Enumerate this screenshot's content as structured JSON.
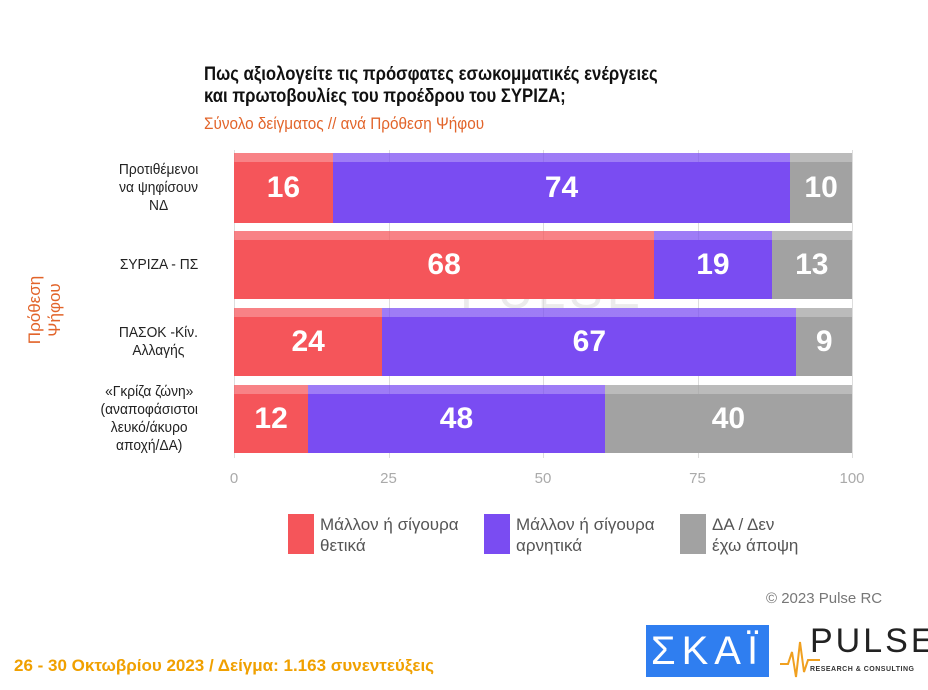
{
  "chart_data": {
    "type": "bar",
    "stacked": true,
    "orientation": "horizontal",
    "title": "Πως αξιολογείτε τις πρόσφατες εσωκομματικές ενέργειες\nκαι πρωτοβουλίες του προέδρου του ΣΥΡΙΖΑ;",
    "subtitle": "Σύνολο δείγματος // ανά Πρόθεση Ψήφου",
    "ylabel": "Πρόθεση Ψήφου",
    "categories": [
      "Προτιθέμενοι\nνα ψηφίσουν\nΝΔ",
      "ΣΥΡΙΖΑ - ΠΣ",
      "ΠΑΣΟΚ -Κίν.\nΑλλαγής",
      "«Γκρίζα ζώνη»\n(αναποφάσιστοι\nλευκό/άκυρο\nαποχή/ΔΑ)"
    ],
    "series": [
      {
        "name": "Μάλλον ή σίγουρα\nθετικά",
        "color": "#f5555a",
        "values": [
          16,
          68,
          24,
          12
        ]
      },
      {
        "name": "Μάλλον ή σίγουρα\nαρνητικά",
        "color": "#7a4cf2",
        "values": [
          74,
          19,
          67,
          48
        ]
      },
      {
        "name": "ΔΑ / Δεν\nέχω άποψη",
        "color": "#a2a2a2",
        "values": [
          10,
          13,
          9,
          40
        ]
      }
    ],
    "xlim": [
      0,
      100
    ],
    "xticks": [
      "0",
      "25",
      "50",
      "75",
      "100"
    ],
    "grid": true,
    "legend": "bottom"
  },
  "copyright": "© 2023 Pulse RC",
  "footer": "26 - 30  Οκτωβρίου  2023  /  Δείγμα:  1.163 συνεντεύξεις",
  "logos": {
    "skai": "ΣΚΑΪ",
    "pulse": "PULSE",
    "pulse_sub": "RESEARCH & CONSULTING",
    "watermark": "PULSE"
  }
}
